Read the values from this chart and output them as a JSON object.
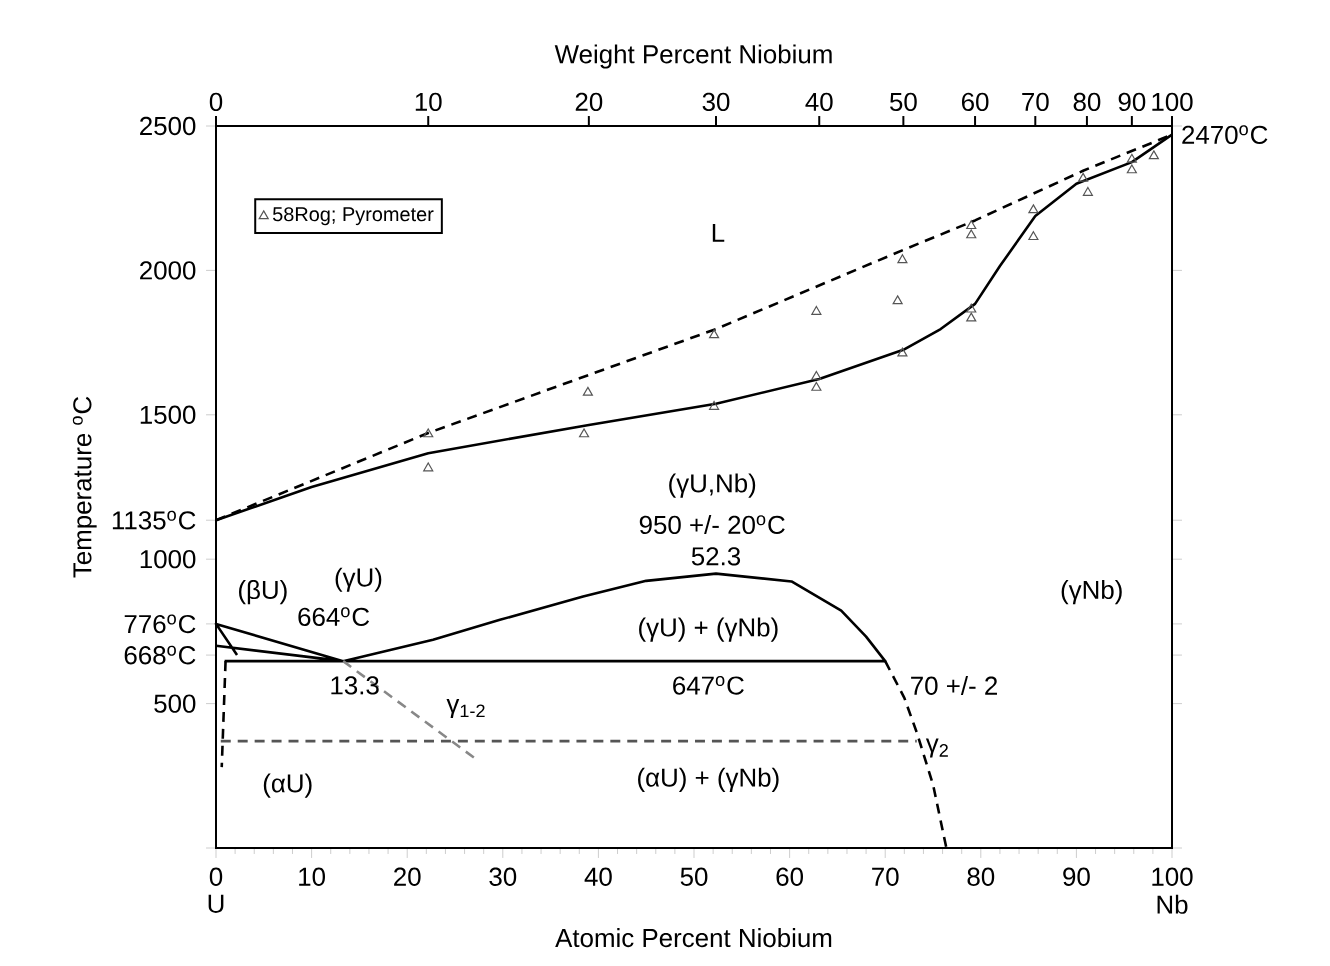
{
  "chart_data": {
    "type": "line",
    "xlabel": "Atomic Percent Niobium",
    "ylabel": "Temperature $^{o}$C",
    "x2label": "Weight Percent Niobium",
    "xlim": [
      0,
      100
    ],
    "xticks": [
      0,
      10,
      20,
      30,
      40,
      50,
      60,
      70,
      80,
      90,
      100
    ],
    "ylim": [
      0,
      2500
    ],
    "yticks": [
      {
        "value": 0,
        "label": null
      },
      500,
      {
        "value": 668,
        "label": "668$^{o}$C"
      },
      {
        "value": 776,
        "label": "776$^{o}$C"
      },
      1000,
      {
        "value": 1135,
        "label": "1135$^{o}$C"
      },
      1500,
      2000,
      2500
    ],
    "legend": "top left",
    "series": [
      {
        "color": "#000000",
        "line_style": "solid",
        "marker": "none",
        "x": [
          0,
          10,
          22.2,
          39,
          52.3,
          63.1,
          71.9,
          75.8,
          79.4,
          82,
          85.7,
          90,
          95.8,
          100
        ],
        "values": [
          1135,
          1250,
          1367,
          1465,
          1538,
          1624,
          1725,
          1797,
          1884,
          2015,
          2188,
          2300,
          2375,
          2470
        ]
      },
      {
        "color": "#000000",
        "line_style": "dashed",
        "marker": "none",
        "x": [
          0,
          22.2,
          39,
          52.3,
          71.9,
          79.4,
          90.7,
          100
        ],
        "values": [
          1135,
          1437,
          1638,
          1797,
          2071,
          2173,
          2345,
          2470
        ]
      },
      {
        "color": "#000000",
        "line_style": "solid",
        "marker": "none",
        "x": [
          0.9,
          70,
          68,
          65.4,
          60.2,
          52.3,
          45,
          38.4,
          29.7,
          22.7,
          13.3,
          null,
          0,
          13.3,
          null,
          2.2,
          0,
          13.3
        ],
        "values": [
          647,
          647,
          732,
          822,
          923,
          950,
          925,
          871,
          790,
          721,
          647,
          null,
          700,
          647,
          null,
          668,
          776,
          647
        ]
      },
      {
        "color": "#000000",
        "line_style": "dashed",
        "marker": "none",
        "x": [
          70,
          72,
          73.3,
          75,
          76.4
        ],
        "values": [
          647,
          520,
          400,
          220,
          0
        ]
      },
      {
        "color": "#888888",
        "line_style": "dashed",
        "marker": "none",
        "x": [
          13.3,
          27.1
        ],
        "values": [
          647,
          310
        ]
      },
      {
        "color": "#555555",
        "line_style": "dashed",
        "marker": "none",
        "x": [
          0.5,
          73.3
        ],
        "values": [
          370,
          370
        ]
      },
      {
        "color": "#000000",
        "line_style": "dashed",
        "marker": "none",
        "x": [
          1.0,
          0.6
        ],
        "values": [
          647,
          280
        ]
      },
      {
        "type": "scatter",
        "name": "58Rog; Pyrometer",
        "color": "#555555",
        "marker": "triangle",
        "x": [
          22.2,
          22.2,
          38.9,
          38.5,
          52.1,
          52.1,
          62.8,
          62.8,
          62.8,
          71.8,
          71.3,
          71.8,
          79.0,
          79.0,
          79.0,
          79.0,
          85.5,
          85.5,
          90.7,
          91.2,
          95.8,
          95.8,
          98.1
        ],
        "values": [
          1433,
          1315,
          1577,
          1433,
          1776,
          1528,
          1857,
          1632,
          1594,
          2036,
          1894,
          1713,
          2154,
          2122,
          1865,
          1834,
          2209,
          2116,
          2318,
          2269,
          2384,
          2347,
          2396
        ]
      }
    ],
    "annotations": [
      {
        "text": "2470$^{o}$C",
        "x": 100,
        "y": 2470
      },
      "L",
      "(γU,Nb)",
      "950 +/- 20$^{o}$C",
      "52.3",
      "(γU)",
      "(βU)",
      "664$^{o}$C",
      "(γU) + (γNb)",
      "13.3",
      "647$^{o}$C",
      "70 +/- 2",
      "γ$_{1-2}$",
      "γ$_{2}$",
      "(αU) + (γNb)",
      "(αU)",
      "(γNb)",
      "U",
      "Nb",
      "0",
      "10",
      "20",
      "30",
      "40",
      "50",
      "60",
      "70",
      "80",
      "90",
      "100"
    ]
  }
}
